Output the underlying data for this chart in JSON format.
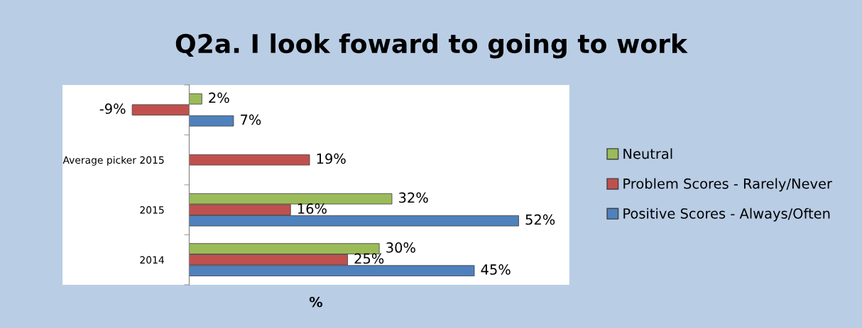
{
  "chart_data": {
    "type": "bar",
    "orientation": "horizontal",
    "title": "Q2a. I look foward to going to work",
    "xlabel": "%",
    "categories": [
      null,
      "Average picker 2015",
      "2015",
      "2014"
    ],
    "series": [
      {
        "name": "Neutral",
        "color": "#9bbb59",
        "values": [
          2,
          null,
          32,
          30
        ],
        "value_labels": [
          "2%",
          null,
          "32%",
          "30%"
        ]
      },
      {
        "name": "Problem Scores - Rarely/Never",
        "color": "#c0504d",
        "values": [
          -9,
          19,
          16,
          25
        ],
        "value_labels": [
          "-9%",
          "19%",
          "16%",
          "25%"
        ]
      },
      {
        "name": "Positive Scores - Always/Often",
        "color": "#4f81bd",
        "values": [
          7,
          null,
          52,
          45
        ],
        "value_labels": [
          "7%",
          null,
          "52%",
          "45%"
        ]
      }
    ],
    "xlim": [
      -20,
      60
    ],
    "tick_labels": "y",
    "legend": "right",
    "grid": false
  }
}
